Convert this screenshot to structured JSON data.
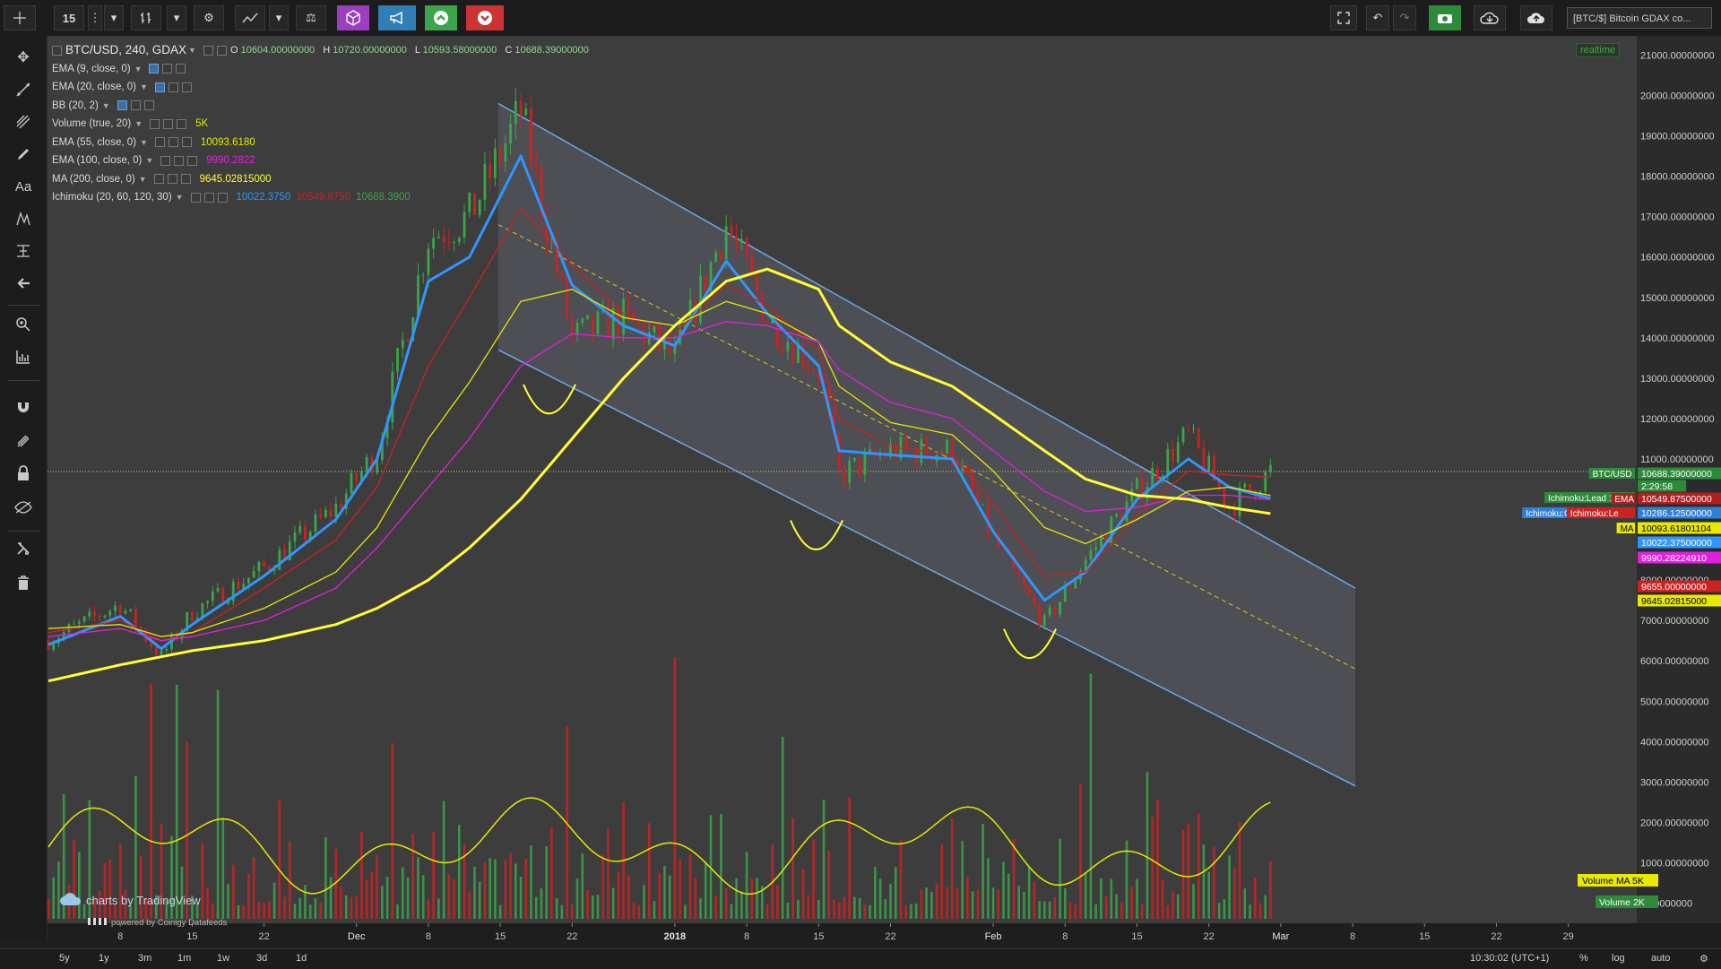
{
  "toolbar": {
    "interval": "15",
    "symbol_tab": "[BTC/$] Bitcoin GDAX co...",
    "icons": [
      "crosshair-icon",
      "caret-down-icon",
      "bar-style-icon",
      "caret-down-icon",
      "gear-icon",
      "indicators-icon",
      "caret-down-icon",
      "compare-icon",
      "cube-icon",
      "megaphone-icon",
      "arrow-up-icon",
      "arrow-down-icon",
      "fullscreen-icon",
      "undo-icon",
      "redo-icon",
      "camera-icon",
      "cloud-download-icon",
      "cloud-upload-icon"
    ],
    "colors": {
      "cube": "#9c3fbf",
      "megaphone": "#2f7fb5",
      "green": "#3aa54a",
      "red": "#cc3333"
    }
  },
  "left_tools": [
    "cursor-icon",
    "trendline-icon",
    "pitchfork-icon",
    "brush-icon",
    "text-icon",
    "pattern-icon",
    "measure-icon",
    "back-arrow-icon",
    "zoom-icon",
    "ruler-icon",
    "magnet-icon",
    "lock-drawing-icon",
    "lock-icon",
    "eye-icon",
    "wrench-icon",
    "trash-icon"
  ],
  "legend": {
    "title": "BTC/USD, 240, GDAX",
    "ohlc": [
      {
        "k": "O",
        "v": "10604.00000000"
      },
      {
        "k": "H",
        "v": "10720.00000000"
      },
      {
        "k": "L",
        "v": "10593.58000000"
      },
      {
        "k": "C",
        "v": "10688.39000000"
      }
    ],
    "indicators": [
      {
        "name": "EMA (9, close, 0)",
        "value": "",
        "color": "#2f96ff",
        "boxes_on": [
          true,
          false,
          false
        ]
      },
      {
        "name": "EMA (20, close, 0)",
        "value": "",
        "color": "#cc2222",
        "boxes_on": [
          true,
          false,
          false
        ]
      },
      {
        "name": "BB (20, 2)",
        "value": "",
        "color": "#aaaaaa",
        "boxes_on": [
          true,
          false,
          false
        ]
      },
      {
        "name": "Volume (true, 20)",
        "value": "5K",
        "color": "#e8e800",
        "boxes_on": [
          false,
          false,
          false
        ]
      },
      {
        "name": "EMA (55, close, 0)",
        "value": "10093.6180",
        "color": "#e8e800",
        "boxes_on": [
          false,
          false,
          false
        ]
      },
      {
        "name": "EMA (100, close, 0)",
        "value": "9990.2822",
        "color": "#e020e0",
        "boxes_on": [
          false,
          false,
          false
        ]
      },
      {
        "name": "MA (200, close, 0)",
        "value": "9645.02815000",
        "color": "#ffff33",
        "boxes_on": [
          false,
          false,
          false
        ]
      },
      {
        "name": "Ichimoku (20, 60, 120, 30)",
        "value": "10022.3750",
        "color": "#2f96ff",
        "extra": [
          {
            "v": "10549.8750",
            "c": "#cc2222"
          },
          {
            "v": "10688.3900",
            "c": "#3aa54a"
          }
        ],
        "boxes_on": [
          false,
          false,
          false
        ]
      }
    ]
  },
  "realtime_label": "realtime",
  "watermark": "charts by TradingView",
  "powered_by": "powered by Coinigy Datafeeds",
  "chart_data": {
    "type": "line",
    "title": "BTC/USD, 240, GDAX",
    "y_axis": {
      "ticks": [
        "21000.00000000",
        "20000.00000000",
        "19000.00000000",
        "18000.00000000",
        "17000.00000000",
        "16000.00000000",
        "15000.00000000",
        "14000.00000000",
        "13000.00000000",
        "12000.00000000",
        "11000.00000000",
        "10000.00000000",
        "9000.00000000",
        "8000.00000000",
        "7000.00000000",
        "6000.00000000",
        "5000.00000000",
        "4000.00000000",
        "3000.00000000",
        "2000.00000000",
        "1000.00000000",
        "0.00000000"
      ],
      "ylim": [
        0,
        21500
      ]
    },
    "x_axis": {
      "ticks": [
        "8",
        "15",
        "22",
        "Dec",
        "8",
        "15",
        "22",
        "2018",
        "8",
        "15",
        "22",
        "Feb",
        "8",
        "15",
        "22",
        "Mar",
        "8",
        "15",
        "22",
        "29"
      ]
    },
    "price_series": {
      "name": "BTC/USD",
      "x_dates": [
        "Nov 1",
        "Nov 8",
        "Nov 12",
        "Nov 15",
        "Nov 22",
        "Nov 29",
        "Dec 3",
        "Dec 8",
        "Dec 12",
        "Dec 17",
        "Dec 22",
        "Dec 27",
        "Jan 1",
        "Jan 6",
        "Jan 10",
        "Jan 15",
        "Jan 17",
        "Jan 22",
        "Jan 28",
        "Feb 1",
        "Feb 6",
        "Feb 10",
        "Feb 15",
        "Feb 20",
        "Feb 24",
        "Feb 28"
      ],
      "close": [
        6500,
        7400,
        6100,
        7200,
        8300,
        9800,
        11200,
        16500,
        17000,
        19600,
        14000,
        14500,
        13500,
        16800,
        14500,
        13200,
        10600,
        11200,
        11200,
        9000,
        6900,
        8500,
        10200,
        11600,
        9800,
        10688
      ]
    },
    "overlays": [
      {
        "name": "EMA (9, close, 0)",
        "color": "#2f96ff",
        "values": [
          6400,
          7100,
          6300,
          6900,
          8100,
          9500,
          11000,
          15400,
          16000,
          18500,
          15300,
          14300,
          13800,
          15900,
          14600,
          13300,
          11200,
          11100,
          11000,
          9200,
          7500,
          8200,
          10000,
          11000,
          10300,
          10022
        ]
      },
      {
        "name": "EMA (20, close, 0)",
        "color": "#cc2222",
        "values": [
          6700,
          7000,
          6500,
          6700,
          7800,
          9000,
          10300,
          13300,
          15000,
          17200,
          15800,
          14600,
          14100,
          15300,
          14800,
          13700,
          12000,
          11300,
          11100,
          9900,
          8100,
          8200,
          9600,
          10700,
          10600,
          10549
        ]
      },
      {
        "name": "EMA (55, close, 0)",
        "color": "#e8e800",
        "values": [
          6800,
          6900,
          6600,
          6700,
          7300,
          8200,
          9300,
          11500,
          12900,
          14900,
          15200,
          14500,
          14300,
          14900,
          14600,
          13900,
          12800,
          11900,
          11600,
          10700,
          9300,
          8900,
          9500,
          10200,
          10300,
          10093
        ]
      },
      {
        "name": "EMA (100, close, 0)",
        "color": "#e020e0",
        "values": [
          6600,
          6800,
          6500,
          6600,
          7000,
          7800,
          8800,
          10300,
          11500,
          13300,
          14100,
          14000,
          14000,
          14400,
          14300,
          13900,
          13200,
          12400,
          12000,
          11200,
          10200,
          9700,
          9800,
          10100,
          10100,
          9990
        ]
      },
      {
        "name": "MA (200, close, 0)",
        "color": "#ffff33",
        "values": [
          5500,
          5900,
          6100,
          6250,
          6500,
          6900,
          7300,
          8000,
          8800,
          10000,
          11500,
          13000,
          14300,
          15400,
          15700,
          15200,
          14300,
          13400,
          12800,
          12100,
          11200,
          10500,
          10100,
          10000,
          9800,
          9645
        ]
      }
    ],
    "channel": {
      "upper_start": 19800,
      "upper_end": 7800,
      "lower_start": 13700,
      "lower_end": 2900,
      "mid_start": 16800,
      "mid_end": 5800
    },
    "volume": {
      "name": "Volume",
      "ma_label": "Volume MA",
      "ma_value": "5K",
      "value": "2K",
      "max": "5K"
    },
    "price_labels": [
      {
        "text": "BTC/USD",
        "value": "10688.39000000",
        "bg": "#2d8a3a"
      },
      {
        "text": "",
        "value": "2:29:58",
        "bg": "#2d8a3a"
      },
      {
        "text": "Ichimoku:Lead 1",
        "value": "",
        "bg": "#2d8a3a"
      },
      {
        "text": "EMA",
        "value": "10549.87500000",
        "bg": "#b01f1f"
      },
      {
        "text": "Ichimoku:Conversion",
        "value": "10286.12500000",
        "bg": "#2f7fd8"
      },
      {
        "text": "Ichimoku:Le",
        "value": "",
        "bg": "#cc2222"
      },
      {
        "text": "MA",
        "value": "10093.61801104",
        "bg": "#e8e800"
      },
      {
        "text": "",
        "value": "10022.37500000",
        "bg": "#2f96ff"
      },
      {
        "text": "",
        "value": "9990.28224910",
        "bg": "#e020e0"
      },
      {
        "text": "",
        "value": "9655.00000000",
        "bg": "#cc2222"
      },
      {
        "text": "",
        "value": "9645.02815000",
        "bg": "#e8e800"
      }
    ],
    "grid": false,
    "colors": {
      "background": "#3d3d3d",
      "up": "#3aa54a",
      "down": "#cc2222",
      "channel": "#6fa8e8"
    }
  },
  "bottom_bar": {
    "ranges": [
      "5y",
      "1y",
      "3m",
      "1m",
      "1w",
      "3d",
      "1d"
    ],
    "time": "10:30:02 (UTC+1)",
    "percent": "%",
    "log": "log",
    "auto": "auto"
  }
}
